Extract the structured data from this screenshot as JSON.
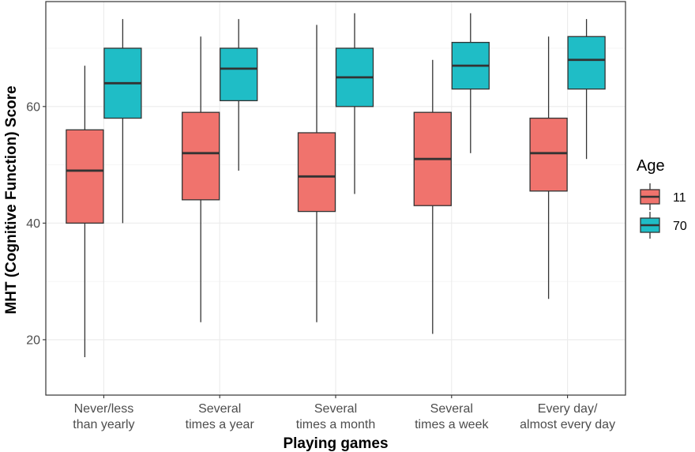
{
  "chart_data": {
    "type": "boxplot",
    "xlabel": "Playing games",
    "ylabel": "MHT (Cognitive Function) Score",
    "ylim": [
      10.5,
      78
    ],
    "yticks": [
      20,
      40,
      60
    ],
    "categories": [
      [
        "Never/less",
        "than yearly"
      ],
      [
        "Several",
        "times a year"
      ],
      [
        "Several",
        "times a month"
      ],
      [
        "Several",
        "times a week"
      ],
      [
        "Every day/",
        "almost every day"
      ]
    ],
    "legend": {
      "title": "Age",
      "position": "right"
    },
    "grid": true,
    "series": [
      {
        "name": "11",
        "color": "#F0736D",
        "boxes": [
          {
            "min": 17,
            "q1": 40,
            "median": 49,
            "q3": 56,
            "max": 67
          },
          {
            "min": 23,
            "q1": 44,
            "median": 52,
            "q3": 59,
            "max": 72
          },
          {
            "min": 23,
            "q1": 42,
            "median": 48,
            "q3": 55.5,
            "max": 74
          },
          {
            "min": 21,
            "q1": 43,
            "median": 51,
            "q3": 59,
            "max": 68
          },
          {
            "min": 27,
            "q1": 45.5,
            "median": 52,
            "q3": 58,
            "max": 72
          }
        ]
      },
      {
        "name": "70",
        "color": "#1FBDC6",
        "boxes": [
          {
            "min": 40,
            "q1": 58,
            "median": 64,
            "q3": 70,
            "max": 75
          },
          {
            "min": 49,
            "q1": 61,
            "median": 66.5,
            "q3": 70,
            "max": 75
          },
          {
            "min": 45,
            "q1": 60,
            "median": 65,
            "q3": 70,
            "max": 76
          },
          {
            "min": 52,
            "q1": 63,
            "median": 67,
            "q3": 71,
            "max": 76
          },
          {
            "min": 51,
            "q1": 63,
            "median": 68,
            "q3": 72,
            "max": 75
          }
        ]
      }
    ]
  }
}
